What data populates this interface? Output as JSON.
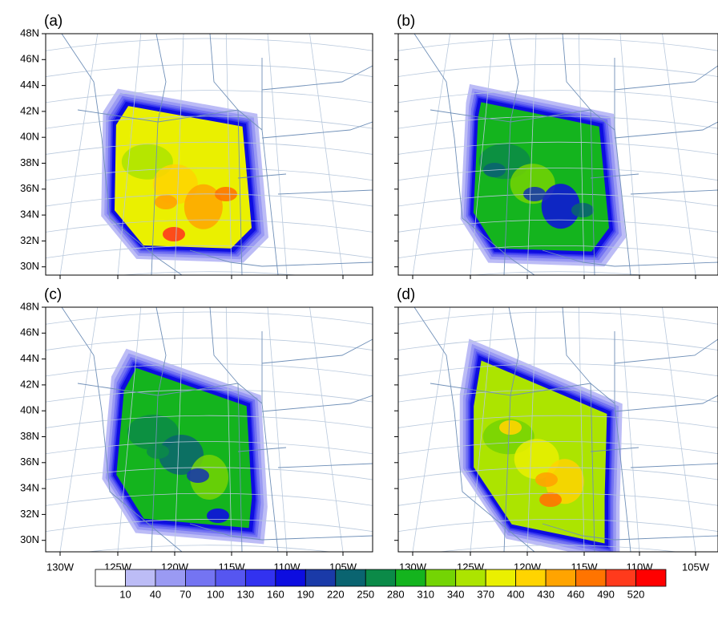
{
  "panels": [
    {
      "label": "(a)"
    },
    {
      "label": "(b)"
    },
    {
      "label": "(c)"
    },
    {
      "label": "(d)"
    }
  ],
  "lat_labels": [
    "48N",
    "46N",
    "44N",
    "42N",
    "40N",
    "38N",
    "36N",
    "34N",
    "32N",
    "30N"
  ],
  "lon_labels": [
    "130W",
    "125W",
    "120W",
    "115W",
    "110W",
    "105W"
  ],
  "colorbar": {
    "levels": [
      10,
      40,
      70,
      100,
      130,
      160,
      190,
      220,
      250,
      280,
      310,
      340,
      370,
      400,
      430,
      460,
      490,
      520
    ],
    "colors": [
      "#ffffff",
      "#bcbcf6",
      "#9a9af3",
      "#7474f2",
      "#5656f0",
      "#3232f0",
      "#0d0de0",
      "#1a3aa8",
      "#0a6470",
      "#0b8a48",
      "#14b41e",
      "#74d404",
      "#ace400",
      "#eaf000",
      "#ffd400",
      "#ffa400",
      "#ff7400",
      "#ff3a1c",
      "#ff0000"
    ]
  }
}
